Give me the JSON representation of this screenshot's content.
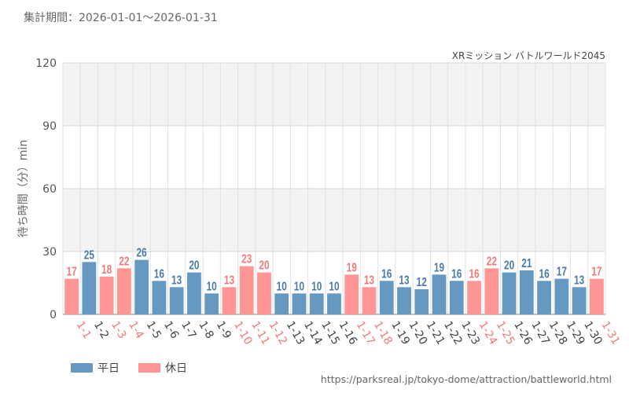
{
  "header": {
    "period": "集計期間：2026-01-01～2026-01-31"
  },
  "source_url": "https://parksreal.jp/tokyo-dome/attraction/battleworld.html",
  "colors": {
    "weekday": "#6699c2",
    "holiday": "#ff9595",
    "weekday_label": "#4a7aa8",
    "holiday_label": "#f07a7a"
  },
  "chart_data": {
    "type": "bar",
    "title": "XRミッション バトルワールド2045",
    "ylabel": "待ち時間（分）min",
    "xlabel": "",
    "ylim": [
      0,
      120
    ],
    "yticks": [
      0,
      30,
      60,
      90,
      120
    ],
    "grid": true,
    "legend": [
      {
        "key": "weekday",
        "label": "平日"
      },
      {
        "key": "holiday",
        "label": "休日"
      }
    ],
    "categories": [
      "1-1",
      "1-2",
      "1-3",
      "1-4",
      "1-5",
      "1-6",
      "1-7",
      "1-8",
      "1-9",
      "1-10",
      "1-11",
      "1-12",
      "1-13",
      "1-14",
      "1-15",
      "1-16",
      "1-17",
      "1-18",
      "1-19",
      "1-20",
      "1-21",
      "1-22",
      "1-23",
      "1-24",
      "1-25",
      "1-26",
      "1-27",
      "1-28",
      "1-29",
      "1-30",
      "1-31"
    ],
    "values": [
      17,
      25,
      18,
      22,
      26,
      16,
      13,
      20,
      10,
      13,
      23,
      20,
      10,
      10,
      10,
      10,
      19,
      13,
      16,
      13,
      12,
      19,
      16,
      16,
      22,
      20,
      21,
      16,
      17,
      13,
      17
    ],
    "day_type": [
      "holiday",
      "weekday",
      "holiday",
      "holiday",
      "weekday",
      "weekday",
      "weekday",
      "weekday",
      "weekday",
      "holiday",
      "holiday",
      "holiday",
      "weekday",
      "weekday",
      "weekday",
      "weekday",
      "holiday",
      "holiday",
      "weekday",
      "weekday",
      "weekday",
      "weekday",
      "weekday",
      "holiday",
      "holiday",
      "weekday",
      "weekday",
      "weekday",
      "weekday",
      "weekday",
      "holiday"
    ]
  }
}
